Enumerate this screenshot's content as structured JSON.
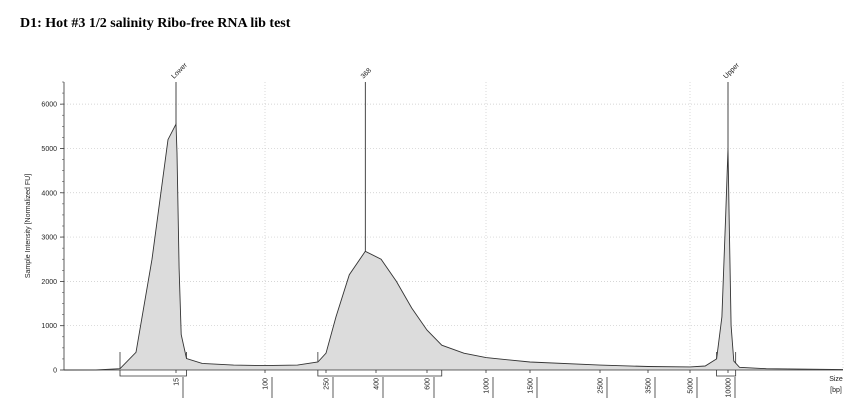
{
  "chart_data": {
    "type": "line",
    "title": "D1: Hot #3 1/2 salinity Ribo-free RNA lib test",
    "ylabel": "Sample Intensity [Normalized FU]",
    "xlabel": "Size",
    "xlabel_unit": "[bp]",
    "ylim": [
      0,
      6500
    ],
    "y_ticks": [
      0,
      1000,
      2000,
      3000,
      4000,
      5000,
      6000
    ],
    "x_ticks": [
      "15",
      "100",
      "250",
      "400",
      "600",
      "1000",
      "1500",
      "2500",
      "3500",
      "5000",
      "10000"
    ],
    "grid": true,
    "peaks": [
      {
        "label": "Lower",
        "size_bp": 15,
        "height": 5550
      },
      {
        "label": "368",
        "size_bp": 368,
        "height": 2680
      },
      {
        "label": "Upper",
        "size_bp": 10000,
        "height": 5000
      }
    ],
    "series": [
      {
        "values": [
          {
            "x": 1,
            "y": 0
          },
          {
            "x": 5,
            "y": 2
          },
          {
            "x": 8,
            "y": 30
          },
          {
            "x": 10,
            "y": 400
          },
          {
            "x": 12,
            "y": 2500
          },
          {
            "x": 14,
            "y": 5200
          },
          {
            "x": 15,
            "y": 5550
          },
          {
            "x": 16,
            "y": 4900
          },
          {
            "x": 18,
            "y": 2300
          },
          {
            "x": 20,
            "y": 800
          },
          {
            "x": 25,
            "y": 260
          },
          {
            "x": 40,
            "y": 150
          },
          {
            "x": 70,
            "y": 110
          },
          {
            "x": 100,
            "y": 100
          },
          {
            "x": 180,
            "y": 110
          },
          {
            "x": 230,
            "y": 180
          },
          {
            "x": 250,
            "y": 380
          },
          {
            "x": 280,
            "y": 1200
          },
          {
            "x": 320,
            "y": 2150
          },
          {
            "x": 368,
            "y": 2680
          },
          {
            "x": 420,
            "y": 2500
          },
          {
            "x": 480,
            "y": 2000
          },
          {
            "x": 540,
            "y": 1400
          },
          {
            "x": 600,
            "y": 900
          },
          {
            "x": 700,
            "y": 560
          },
          {
            "x": 850,
            "y": 380
          },
          {
            "x": 1000,
            "y": 280
          },
          {
            "x": 1500,
            "y": 180
          },
          {
            "x": 2500,
            "y": 110
          },
          {
            "x": 3500,
            "y": 80
          },
          {
            "x": 5000,
            "y": 70
          },
          {
            "x": 7000,
            "y": 90
          },
          {
            "x": 8500,
            "y": 250
          },
          {
            "x": 9200,
            "y": 1200
          },
          {
            "x": 9700,
            "y": 3500
          },
          {
            "x": 10000,
            "y": 5000
          },
          {
            "x": 10300,
            "y": 3500
          },
          {
            "x": 10800,
            "y": 1000
          },
          {
            "x": 11500,
            "y": 200
          },
          {
            "x": 13000,
            "y": 60
          },
          {
            "x": 20000,
            "y": 30
          },
          {
            "x": 40000,
            "y": 10
          }
        ]
      }
    ],
    "integration_ranges": [
      {
        "from": 8,
        "to": 25
      },
      {
        "from": 230,
        "to": 700
      },
      {
        "from": 8500,
        "to": 12000
      }
    ]
  }
}
